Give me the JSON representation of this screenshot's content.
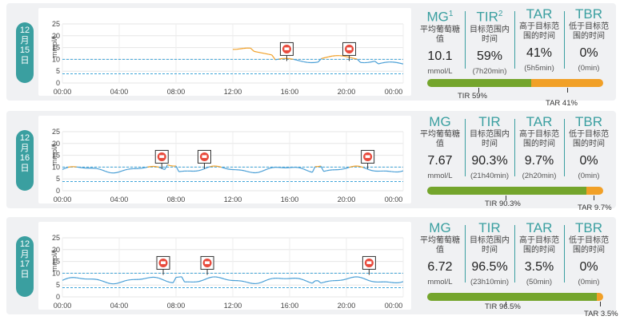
{
  "y_axis_label": "mmol/L",
  "y_ticks": [
    "25",
    "20",
    "15",
    "10",
    "5",
    "0"
  ],
  "x_ticks": [
    "00:00",
    "04:00",
    "08:00",
    "12:00",
    "16:00",
    "20:00",
    "00:00"
  ],
  "colors": {
    "accent": "#3a9fa0",
    "in_range": "#4a9fd6",
    "high": "#f1a027",
    "tir_bar": "#74a52c",
    "tar_bar": "#f1a027",
    "band_line": "#3aa3d8",
    "meal_icon": "#e84a3c"
  },
  "days": [
    {
      "date": {
        "m": "12",
        "yue": "月",
        "d": "15",
        "ri": "日"
      },
      "stats": {
        "mg": {
          "head": "MG",
          "sup": "1",
          "sub": "平均葡萄糖值",
          "value": "10.1",
          "unit": "mmol/L"
        },
        "tir": {
          "head": "TIR",
          "sup": "2",
          "sub": "目标范围内时间",
          "value": "59%",
          "unit": "(7h20min)"
        },
        "tar": {
          "head": "TAR",
          "sub": "高于目标范围的时间",
          "value": "41%",
          "unit": "(5h5min)"
        },
        "tbr": {
          "head": "TBR",
          "sub": "低于目标范围的时间",
          "value": "0%",
          "unit": "(0min)"
        }
      },
      "bar": {
        "tir_pct": 59,
        "tar_pct": 41,
        "tir_label": "TIR 59%",
        "tar_label": "TAR 41%"
      },
      "meals_hours": [
        15.8,
        20.2
      ]
    },
    {
      "date": {
        "m": "12",
        "yue": "月",
        "d": "16",
        "ri": "日"
      },
      "stats": {
        "mg": {
          "head": "MG",
          "sub": "平均葡萄糖值",
          "value": "7.67",
          "unit": "mmol/L"
        },
        "tir": {
          "head": "TIR",
          "sub": "目标范围内时间",
          "value": "90.3%",
          "unit": "(21h40min)"
        },
        "tar": {
          "head": "TAR",
          "sub": "高于目标范围的时间",
          "value": "9.7%",
          "unit": "(2h20min)"
        },
        "tbr": {
          "head": "TBR",
          "sub": "低于目标范围的时间",
          "value": "0%",
          "unit": "(0min)"
        }
      },
      "bar": {
        "tir_pct": 90.3,
        "tar_pct": 9.7,
        "tir_label": "TIR 90.3%",
        "tar_label": "TAR 9.7%"
      },
      "meals_hours": [
        7.0,
        10.0,
        21.5
      ]
    },
    {
      "date": {
        "m": "12",
        "yue": "月",
        "d": "17",
        "ri": "日"
      },
      "stats": {
        "mg": {
          "head": "MG",
          "sub": "平均葡萄糖值",
          "value": "6.72",
          "unit": "mmol/L"
        },
        "tir": {
          "head": "TIR",
          "sub": "目标范围内时间",
          "value": "96.5%",
          "unit": "(23h10min)"
        },
        "tar": {
          "head": "TAR",
          "sub": "高于目标范围的时间",
          "value": "3.5%",
          "unit": "(50min)"
        },
        "tbr": {
          "head": "TBR",
          "sub": "低于目标范围的时间",
          "value": "0%",
          "unit": "(0min)"
        }
      },
      "bar": {
        "tir_pct": 96.5,
        "tar_pct": 3.5,
        "tir_label": "TIR 96.5%",
        "tar_label": "TAR 3.5%"
      },
      "meals_hours": [
        7.1,
        10.2,
        21.6
      ]
    }
  ]
}
